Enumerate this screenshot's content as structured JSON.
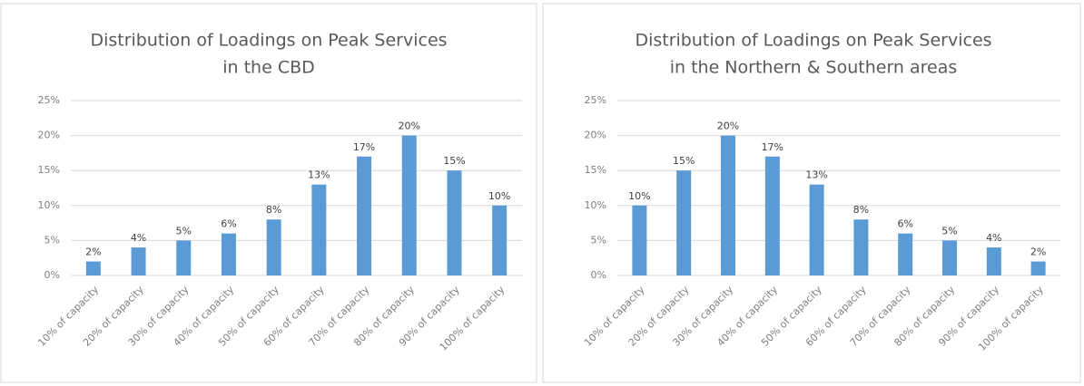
{
  "chart_data": [
    {
      "type": "bar",
      "title": [
        "Distribution of Loadings on Peak Services",
        "in the CBD"
      ],
      "categories": [
        "10% of capacity",
        "20% of capacity",
        "30% of capacity",
        "40% of capacity",
        "50% of capacity",
        "60% of capacity",
        "70% of capacity",
        "80% of capacity",
        "90% of capacity",
        "100% of capacity"
      ],
      "values": [
        2,
        4,
        5,
        6,
        8,
        13,
        17,
        20,
        15,
        10
      ],
      "value_labels": [
        "2%",
        "4%",
        "5%",
        "6%",
        "8%",
        "13%",
        "17%",
        "20%",
        "15%",
        "10%"
      ],
      "color": "#5b9bd5",
      "ylim": [
        0,
        25
      ],
      "yticks": [
        {
          "value": 0,
          "label": "0%"
        },
        {
          "value": 5,
          "label": "5%"
        },
        {
          "value": 10,
          "label": "10%"
        },
        {
          "value": 15,
          "label": "15%"
        },
        {
          "value": 20,
          "label": "20%"
        },
        {
          "value": 25,
          "label": "25%"
        }
      ],
      "grid": true
    },
    {
      "type": "bar",
      "title": [
        "Distribution of Loadings on Peak Services",
        "in the Northern & Southern areas"
      ],
      "categories": [
        "10% of capacity",
        "20% of capacity",
        "30% of capacity",
        "40% of capacity",
        "50% of capacity",
        "60% of capacity",
        "70% of capacity",
        "80% of capacity",
        "90% of capacity",
        "100% of capacity"
      ],
      "values": [
        10,
        15,
        20,
        17,
        13,
        8,
        6,
        5,
        4,
        2
      ],
      "value_labels": [
        "10%",
        "15%",
        "20%",
        "17%",
        "13%",
        "8%",
        "6%",
        "5%",
        "4%",
        "2%"
      ],
      "color": "#5b9bd5",
      "ylim": [
        0,
        25
      ],
      "yticks": [
        {
          "value": 0,
          "label": "0%"
        },
        {
          "value": 5,
          "label": "5%"
        },
        {
          "value": 10,
          "label": "10%"
        },
        {
          "value": 15,
          "label": "15%"
        },
        {
          "value": 20,
          "label": "20%"
        },
        {
          "value": 25,
          "label": "25%"
        }
      ],
      "grid": true
    }
  ]
}
